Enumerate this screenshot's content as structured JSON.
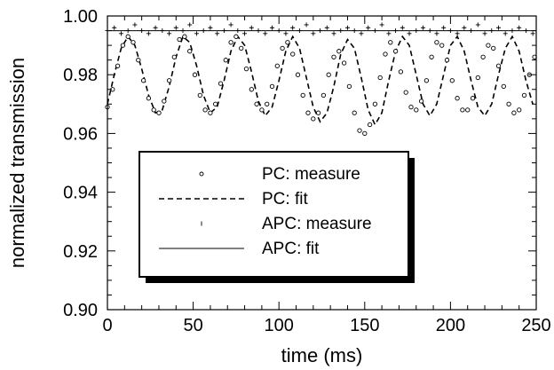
{
  "chart_data": {
    "type": "scatter",
    "xlabel": "time (ms)",
    "ylabel": "normalized transmission",
    "xlim": [
      0,
      250
    ],
    "ylim": [
      0.9,
      1.0
    ],
    "x_ticks": [
      "0",
      "50",
      "100",
      "150",
      "200",
      "250"
    ],
    "y_ticks": [
      "0.90",
      "0.92",
      "0.94",
      "0.96",
      "0.98",
      "1.00"
    ],
    "grid": false,
    "legend_position": "lower-left inside, boxed with drop shadow",
    "series": [
      {
        "name": "PC: measure",
        "style": "open-circle markers",
        "x": [
          0,
          3,
          6,
          9,
          12,
          15,
          18,
          21,
          24,
          27,
          30,
          33,
          36,
          39,
          42,
          45,
          48,
          51,
          54,
          57,
          60,
          63,
          66,
          69,
          72,
          75,
          78,
          81,
          84,
          87,
          90,
          93,
          96,
          99,
          102,
          105,
          108,
          111,
          114,
          117,
          120,
          123,
          126,
          129,
          132,
          135,
          138,
          141,
          144,
          147,
          150,
          153,
          156,
          159,
          162,
          165,
          168,
          171,
          174,
          177,
          180,
          183,
          186,
          189,
          192,
          195,
          198,
          201,
          204,
          207,
          210,
          213,
          216,
          219,
          222,
          225,
          228,
          231,
          234,
          237,
          240,
          243,
          246,
          249
        ],
        "y": [
          0.969,
          0.975,
          0.983,
          0.99,
          0.993,
          0.991,
          0.985,
          0.978,
          0.972,
          0.968,
          0.967,
          0.971,
          0.978,
          0.986,
          0.992,
          0.993,
          0.988,
          0.98,
          0.973,
          0.968,
          0.967,
          0.97,
          0.977,
          0.985,
          0.991,
          0.993,
          0.989,
          0.982,
          0.975,
          0.97,
          0.968,
          0.97,
          0.976,
          0.983,
          0.989,
          0.991,
          0.987,
          0.98,
          0.973,
          0.967,
          0.965,
          0.967,
          0.973,
          0.98,
          0.986,
          0.988,
          0.984,
          0.976,
          0.967,
          0.961,
          0.96,
          0.963,
          0.97,
          0.979,
          0.987,
          0.991,
          0.988,
          0.981,
          0.974,
          0.969,
          0.968,
          0.971,
          0.978,
          0.986,
          0.991,
          0.99,
          0.985,
          0.978,
          0.972,
          0.968,
          0.968,
          0.972,
          0.979,
          0.986,
          0.99,
          0.989,
          0.983,
          0.976,
          0.97,
          0.967,
          0.968,
          0.973,
          0.98,
          0.986
        ]
      },
      {
        "name": "PC: fit",
        "style": "dashed line",
        "x": [
          0,
          4,
          8,
          12,
          16,
          20,
          24,
          28,
          32,
          36,
          40,
          44,
          48,
          52,
          56,
          60,
          64,
          68,
          72,
          76,
          80,
          84,
          88,
          92,
          96,
          100,
          104,
          108,
          112,
          116,
          120,
          124,
          128,
          132,
          136,
          140,
          144,
          148,
          152,
          156,
          160,
          164,
          168,
          172,
          176,
          180,
          184,
          188,
          192,
          196,
          200,
          204,
          208,
          212,
          216,
          220,
          224,
          228,
          232,
          236,
          240,
          244,
          248
        ],
        "y": [
          0.97,
          0.98,
          0.989,
          0.993,
          0.99,
          0.982,
          0.973,
          0.967,
          0.968,
          0.976,
          0.986,
          0.993,
          0.991,
          0.983,
          0.973,
          0.967,
          0.969,
          0.978,
          0.988,
          0.993,
          0.99,
          0.981,
          0.971,
          0.966,
          0.969,
          0.978,
          0.988,
          0.993,
          0.989,
          0.979,
          0.969,
          0.964,
          0.967,
          0.976,
          0.987,
          0.992,
          0.989,
          0.979,
          0.968,
          0.963,
          0.967,
          0.978,
          0.988,
          0.993,
          0.99,
          0.98,
          0.97,
          0.966,
          0.97,
          0.98,
          0.99,
          0.993,
          0.988,
          0.978,
          0.969,
          0.966,
          0.97,
          0.98,
          0.989,
          0.993,
          0.988,
          0.978,
          0.97
        ]
      },
      {
        "name": "APC: measure",
        "style": "small plus markers",
        "x": [
          0,
          4,
          8,
          12,
          16,
          20,
          24,
          28,
          32,
          36,
          40,
          44,
          48,
          52,
          56,
          60,
          64,
          68,
          72,
          76,
          80,
          84,
          88,
          92,
          96,
          100,
          104,
          108,
          112,
          116,
          120,
          124,
          128,
          132,
          136,
          140,
          144,
          148,
          152,
          156,
          160,
          164,
          168,
          172,
          176,
          180,
          184,
          188,
          192,
          196,
          200,
          204,
          208,
          212,
          216,
          220,
          224,
          228,
          232,
          236,
          240,
          244,
          248
        ],
        "y": [
          0.995,
          0.996,
          0.994,
          0.995,
          0.997,
          0.995,
          0.994,
          0.996,
          0.995,
          0.994,
          0.996,
          0.995,
          0.997,
          0.994,
          0.995,
          0.996,
          0.994,
          0.995,
          0.997,
          0.995,
          0.994,
          0.996,
          0.995,
          0.994,
          0.996,
          0.995,
          0.994,
          0.996,
          0.995,
          0.997,
          0.994,
          0.995,
          0.996,
          0.994,
          0.995,
          0.996,
          0.995,
          0.994,
          0.996,
          0.995,
          0.997,
          0.994,
          0.995,
          0.996,
          0.994,
          0.995,
          0.996,
          0.995,
          0.994,
          0.996,
          0.995,
          0.994,
          0.996,
          0.995,
          0.997,
          0.994,
          0.995,
          0.996,
          0.994,
          0.995,
          0.996,
          0.995,
          0.994
        ]
      },
      {
        "name": "APC: fit",
        "style": "thin solid line",
        "x": [
          0,
          250
        ],
        "y": [
          0.995,
          0.995
        ]
      }
    ]
  }
}
